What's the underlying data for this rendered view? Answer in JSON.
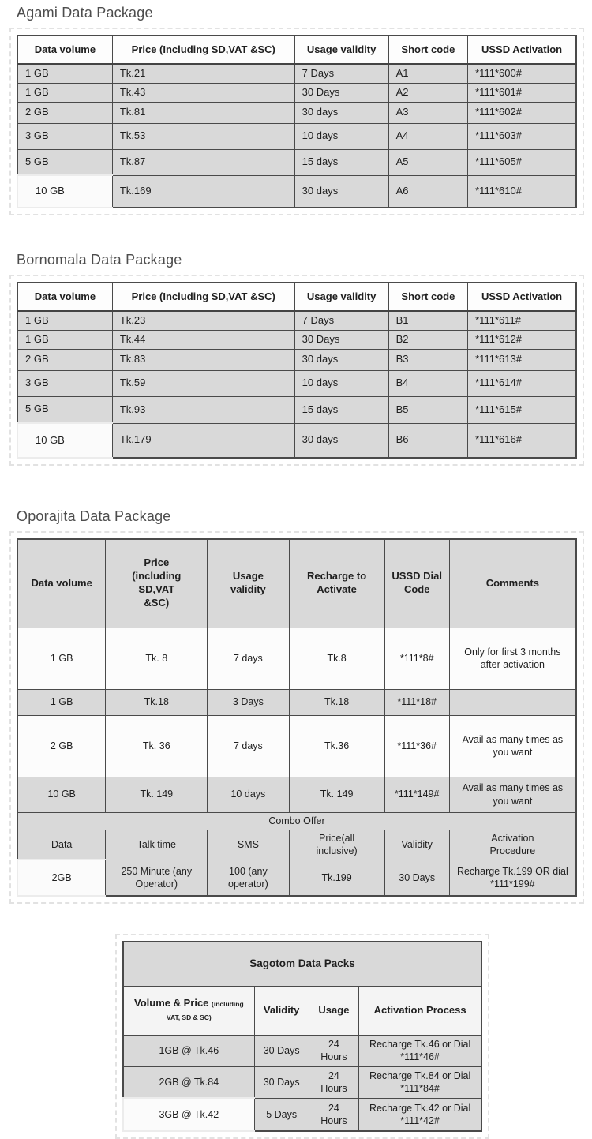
{
  "tables": [
    {
      "name": "agami",
      "title": "Agami Data Package",
      "headers": [
        "Data volume",
        "Price (Including SD,VAT &SC)",
        "Usage validity",
        "Short code",
        "USSD Activation"
      ],
      "rows": [
        [
          "1 GB",
          "Tk.21",
          "7 Days",
          "A1",
          "*111*600#"
        ],
        [
          "1 GB",
          "Tk.43",
          "30 Days",
          "A2",
          "*111*601#"
        ],
        [
          "2 GB",
          "Tk.81",
          "30 days",
          "A3",
          "*111*602#"
        ],
        [
          "3 GB",
          "Tk.53",
          "10 days",
          "A4",
          "*111*603#"
        ],
        [
          "5 GB",
          "Tk.87",
          "15 days",
          "A5",
          "*111*605#"
        ],
        [
          "10 GB",
          "Tk.169",
          "30 days",
          "A6",
          "*111*610#"
        ]
      ]
    },
    {
      "name": "bornomala",
      "title": "Bornomala Data Package",
      "headers": [
        "Data volume",
        "Price (Including SD,VAT &SC)",
        "Usage validity",
        "Short code",
        "USSD Activation"
      ],
      "rows": [
        [
          "1 GB",
          "Tk.23",
          "7 Days",
          "B1",
          "*111*611#"
        ],
        [
          "1 GB",
          "Tk.44",
          "30 Days",
          "B2",
          "*111*612#"
        ],
        [
          "2 GB",
          "Tk.83",
          "30 days",
          "B3",
          "*111*613#"
        ],
        [
          "3 GB",
          "Tk.59",
          "10 days",
          "B4",
          "*111*614#"
        ],
        [
          "5 GB",
          "Tk.93",
          "15 days",
          "B5",
          "*111*615#"
        ],
        [
          "10 GB",
          "Tk.179",
          "30 days",
          "B6",
          "*111*616#"
        ]
      ]
    },
    {
      "name": "oporajita",
      "title": "Oporajita Data Package",
      "headers": [
        "Data volume",
        "Price (including SD,VAT &SC)",
        "Usage validity",
        "Recharge to Activate",
        "USSD Dial Code",
        "Comments"
      ],
      "rows": [
        [
          "1 GB",
          "Tk. 8",
          "7 days",
          "Tk.8",
          "*111*8#",
          "Only for first 3 months after activation"
        ],
        [
          "1 GB",
          "Tk.18",
          "3 Days",
          "Tk.18",
          "*111*18#",
          ""
        ],
        [
          "2 GB",
          "Tk. 36",
          "7 days",
          "Tk.36",
          "*111*36#",
          "Avail as many times as you want"
        ],
        [
          "10 GB",
          "Tk. 149",
          "10 days",
          "Tk. 149",
          "*111*149#",
          "Avail as many times as you want"
        ]
      ],
      "combo": {
        "title": "Combo Offer",
        "headers": [
          "Data",
          "Talk time",
          "SMS",
          "Price(all inclusive)",
          "Validity",
          "Activation Procedure"
        ],
        "rows": [
          [
            "2GB",
            "250 Minute (any Operator)",
            "100 (any operator)",
            "Tk.199",
            "30 Days",
            "Recharge Tk.199 OR dial *111*199#"
          ]
        ]
      }
    },
    {
      "name": "sagotom",
      "title": "Sagotom Data Packs",
      "header_col1_main": "Volume & Price",
      "header_col1_small": "(including VAT, SD & SC)",
      "headers": [
        "Validity",
        "Usage",
        "Activation Process"
      ],
      "rows": [
        [
          "1GB @ Tk.46",
          "30 Days",
          "24 Hours",
          "Recharge Tk.46 or Dial *111*46#"
        ],
        [
          "2GB @ Tk.84",
          "30 Days",
          "24 Hours",
          "Recharge Tk.84 or Dial *111*84#"
        ],
        [
          "3GB @ Tk.42",
          "5 Days",
          "24 Hours",
          "Recharge Tk.42 or Dial *111*42#"
        ]
      ]
    }
  ]
}
